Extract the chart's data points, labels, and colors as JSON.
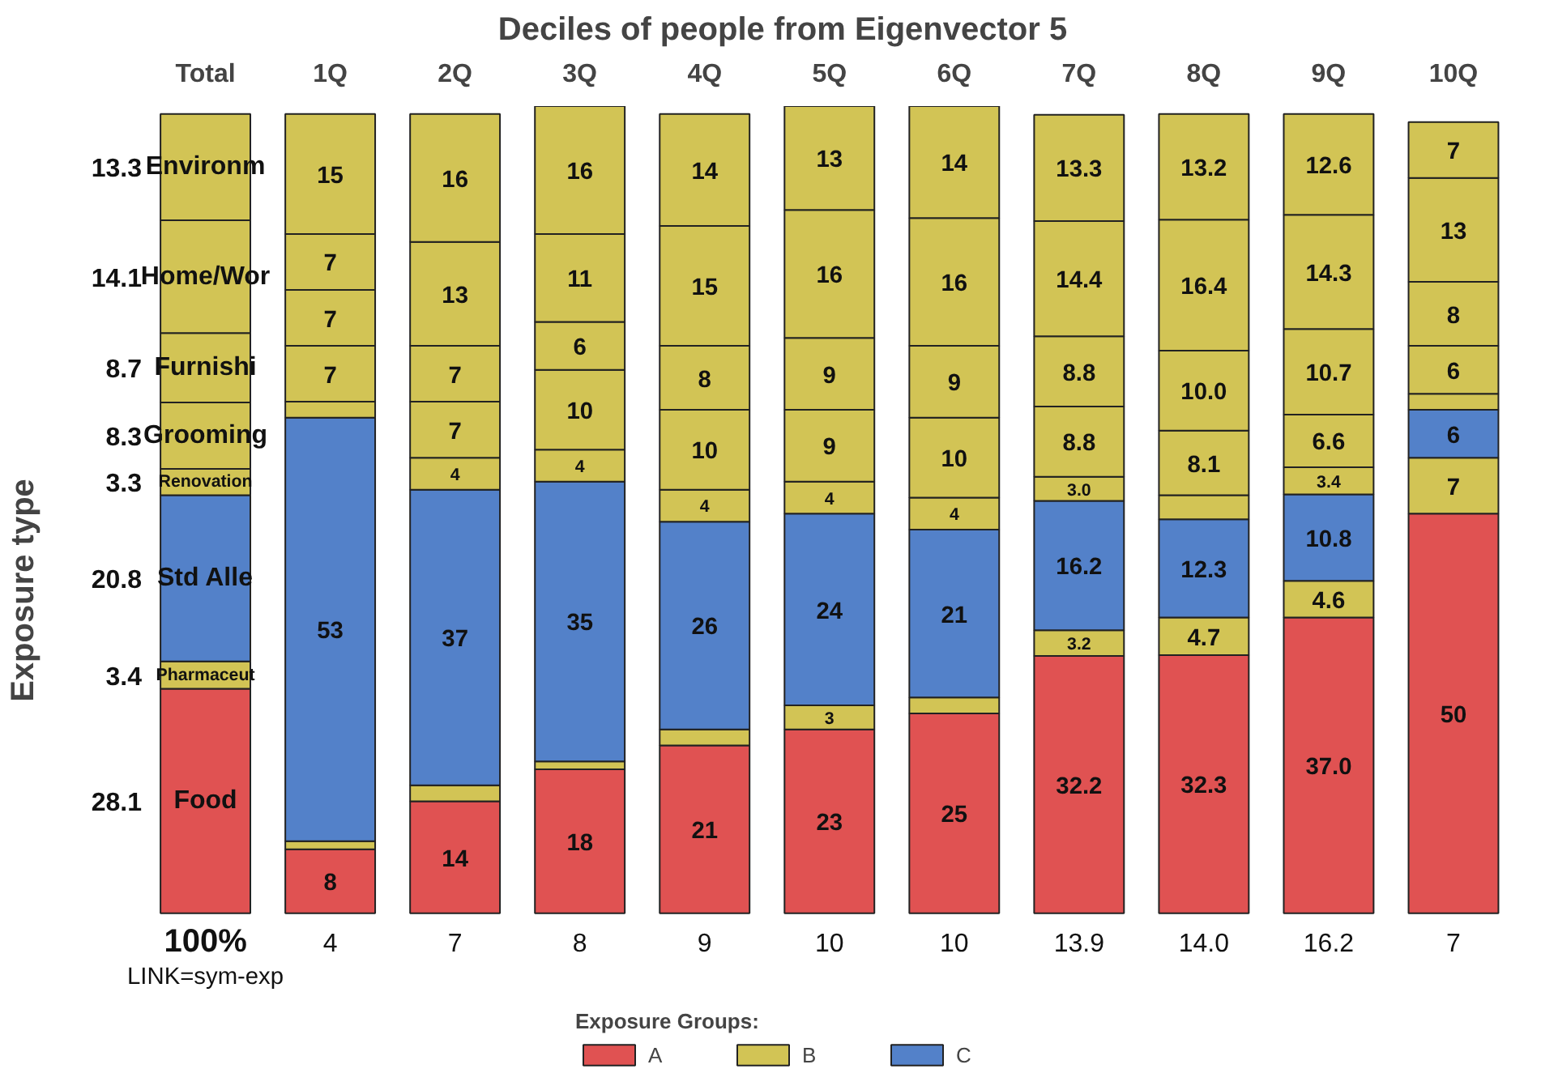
{
  "chart_data": {
    "type": "bar",
    "stacked": true,
    "title": "Deciles of people from Eigenvector 5",
    "ylabel": "Exposure type",
    "legend_title": "Exposure Groups:",
    "legend": "bottom",
    "grid": false,
    "categories": [
      "Total",
      "1Q",
      "2Q",
      "3Q",
      "4Q",
      "5Q",
      "6Q",
      "7Q",
      "8Q",
      "9Q",
      "10Q"
    ],
    "series": [
      {
        "name": "A",
        "color": "#e05252",
        "values": [
          28.1,
          8,
          14,
          18,
          21,
          23,
          25,
          32.2,
          32.3,
          37.0,
          50
        ],
        "value_labels": [
          "Food",
          "8",
          "14",
          "18",
          "21",
          "23",
          "25",
          "32.2",
          "32.3",
          "37.0",
          "50"
        ]
      },
      {
        "name": "B",
        "color": "#d2c455",
        "values": [
          3.4,
          1,
          2,
          1,
          2,
          3,
          2,
          3.2,
          4.7,
          4.6,
          7
        ],
        "value_labels": [
          "Pharmaceut",
          null,
          null,
          null,
          null,
          "3",
          null,
          "3.2",
          "4.7",
          "4.6",
          "7"
        ]
      },
      {
        "name": "C",
        "color": "#5381c9",
        "values": [
          20.8,
          53,
          37,
          35,
          26,
          24,
          21,
          16.2,
          12.3,
          10.8,
          6
        ],
        "value_labels": [
          "Std Alle",
          "53",
          "37",
          "35",
          "26",
          "24",
          "21",
          "16.2",
          "12.3",
          "10.8",
          "6"
        ]
      },
      {
        "color": "#d2c455",
        "values": [
          3.3,
          2,
          4,
          4,
          4,
          4,
          4,
          3.0,
          3.0,
          3.4,
          2
        ],
        "value_labels": [
          "Renovation",
          null,
          "4",
          "4",
          "4",
          "4",
          "4",
          "3.0",
          null,
          "3.4",
          null
        ]
      },
      {
        "color": "#d2c455",
        "values": [
          8.3,
          7,
          7,
          10,
          10,
          9,
          10,
          8.8,
          8.1,
          6.6,
          6
        ],
        "value_labels": [
          "Grooming",
          "7",
          "7",
          "10",
          "10",
          "9",
          "10",
          "8.8",
          "8.1",
          "6.6",
          "6"
        ]
      },
      {
        "color": "#d2c455",
        "values": [
          8.7,
          7,
          7,
          6,
          8,
          9,
          9,
          8.8,
          10.0,
          10.7,
          8
        ],
        "value_labels": [
          "Furnishi",
          "7",
          "7",
          "6",
          "8",
          "9",
          "9",
          "8.8",
          "10.0",
          "10.7",
          "8"
        ]
      },
      {
        "color": "#d2c455",
        "values": [
          14.1,
          7,
          13,
          11,
          15,
          16,
          16,
          14.4,
          16.4,
          14.3,
          13
        ],
        "value_labels": [
          "Home/Wor",
          "7",
          "13",
          "11",
          "15",
          "16",
          "16",
          "14.4",
          "16.4",
          "14.3",
          "13"
        ]
      },
      {
        "color": "#d2c455",
        "values": [
          13.3,
          15,
          16,
          16,
          14,
          13,
          14,
          13.3,
          13.2,
          12.6,
          7
        ],
        "value_labels": [
          "Environm",
          "15",
          "16",
          "16",
          "14",
          "13",
          "14",
          "13.3",
          "13.2",
          "12.6",
          "7"
        ]
      }
    ],
    "annotations": [
      "28.1",
      "3.4",
      "20.8",
      "3.3",
      "8.3",
      "8.7",
      "14.1",
      "13.3",
      "100%",
      "4",
      "7",
      "8",
      "9",
      "10",
      "10",
      "13.9",
      "14.0",
      "16.2",
      "7",
      "LINK=sym-exp"
    ]
  }
}
